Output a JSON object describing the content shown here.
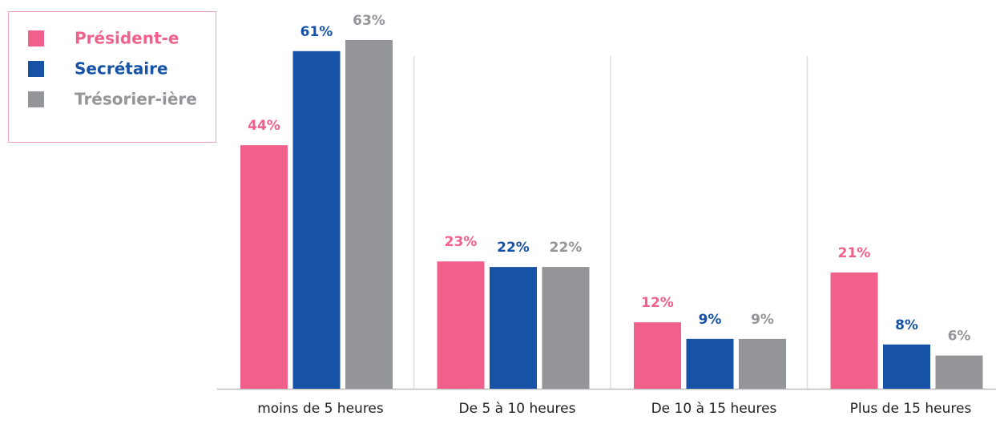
{
  "chart_data": {
    "type": "bar",
    "categories": [
      "moins de 5 heures",
      "De 5 à 10 heures",
      "De 10 à 15 heures",
      "Plus de 15 heures"
    ],
    "series": [
      {
        "name": "Président-e",
        "color": "#f0608a",
        "values": [
          44,
          23,
          12,
          21
        ],
        "value_labels": [
          "44%",
          "23%",
          "12%",
          "21%"
        ]
      },
      {
        "name": "Secrétaire",
        "color": "#1652a5",
        "values": [
          61,
          22,
          9,
          8
        ],
        "value_labels": [
          "61%",
          "22%",
          "9%",
          "8%"
        ]
      },
      {
        "name": "Trésorier-ière",
        "color": "#939598",
        "values": [
          63,
          22,
          9,
          6
        ],
        "value_labels": [
          "63%",
          "22%",
          "9%",
          "6%"
        ]
      }
    ],
    "legend": "top-left"
  }
}
